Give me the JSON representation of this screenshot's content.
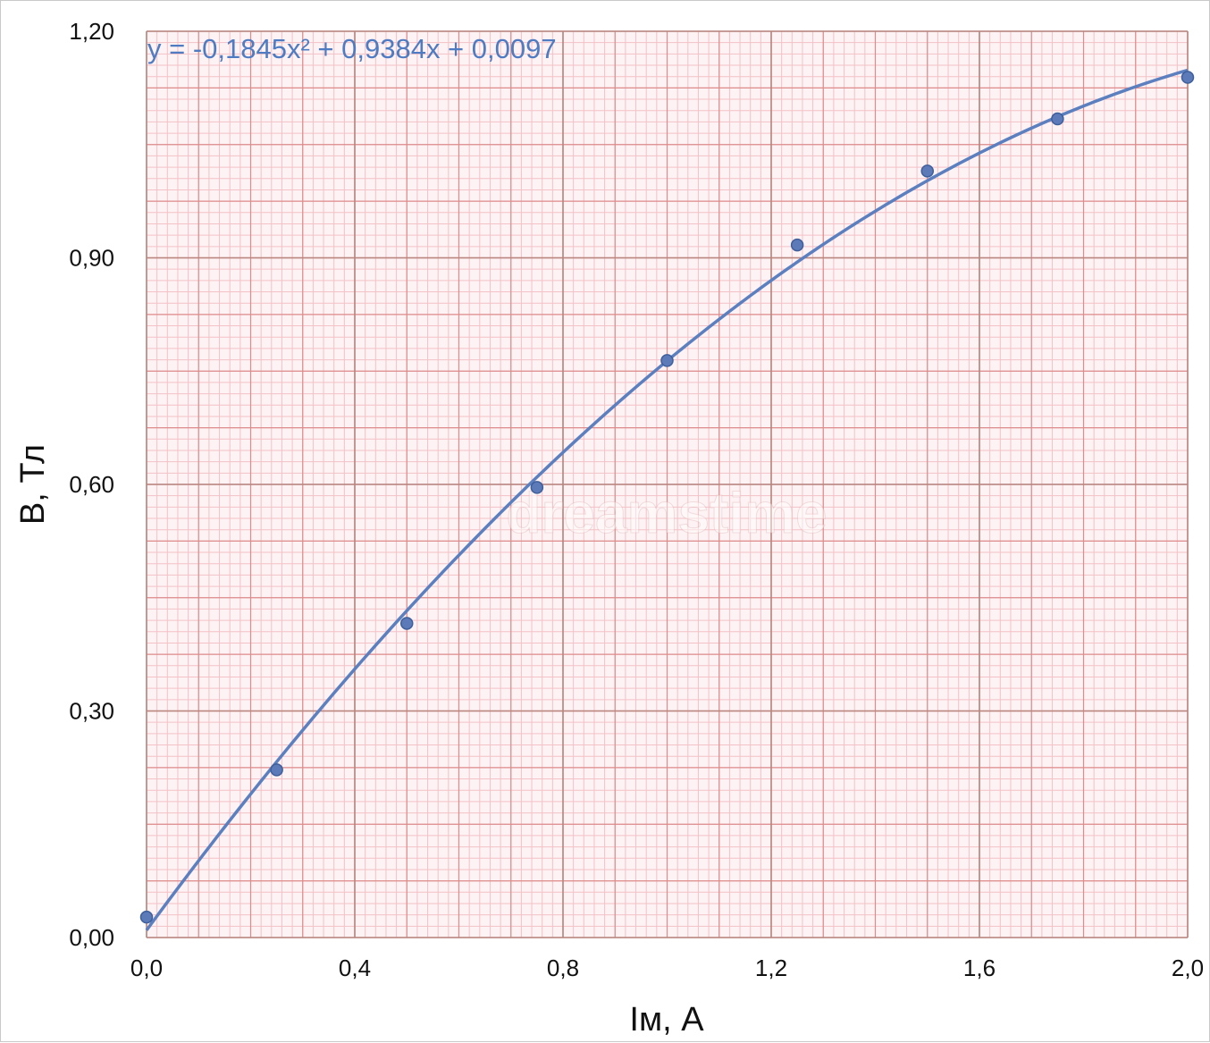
{
  "chart_data": {
    "type": "scatter",
    "xlabel": "Iм, А",
    "ylabel": "B, Тл",
    "xlim": [
      0,
      2.0
    ],
    "ylim": [
      0,
      1.2
    ],
    "x_ticks": [
      "0,0",
      "0,4",
      "0,8",
      "1,2",
      "1,6",
      "2,0"
    ],
    "y_ticks": [
      "0,00",
      "0,30",
      "0,60",
      "0,90",
      "1,20"
    ],
    "grid": "graph-paper (major, medium and minor lines)",
    "series": [
      {
        "x": [
          0.0,
          0.25,
          0.5,
          0.75,
          1.0,
          1.25,
          1.5,
          1.75,
          2.0
        ],
        "y": [
          0.027,
          0.222,
          0.416,
          0.596,
          0.764,
          0.917,
          1.015,
          1.084,
          1.139
        ]
      }
    ],
    "trendline": {
      "type": "polynomial",
      "coefficients": [
        -0.1845,
        0.9384,
        0.0097
      ],
      "equation": "y = -0,1845x² + 0,9384x + 0,0097"
    },
    "watermark": "dreamstime",
    "colors": {
      "marker": "#5b7ab7",
      "marker_stroke": "#3e5f9c",
      "trendline": "#5b7fbf",
      "equation": "#4f7bc2",
      "grid_major": "#b7867f",
      "grid_medium": "#dd8b8b",
      "grid_minor": "#f3c1c6",
      "plot_background": "#fdf3f4"
    }
  }
}
